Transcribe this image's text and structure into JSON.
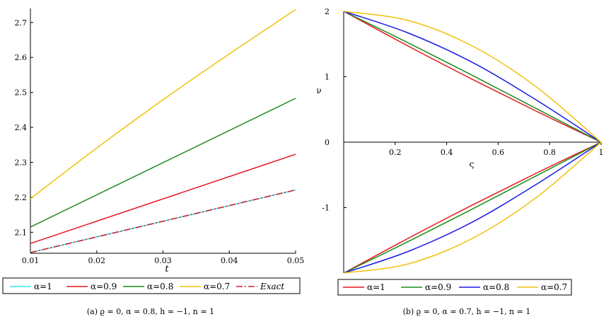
{
  "chart_data": [
    {
      "type": "line",
      "xlabel": "t",
      "ylabel": "",
      "xlim": [
        0.01,
        0.05
      ],
      "ylim": [
        2.04,
        2.74
      ],
      "x_ticks": [
        "0.01",
        "0.02",
        "0.03",
        "0.04",
        "0.05"
      ],
      "y_ticks": [
        "2.1",
        "2.2",
        "2.3",
        "2.4",
        "2.5",
        "2.6",
        "2.7"
      ],
      "legend_position": "bottom",
      "caption": "(a) ϱ = 0, α = 0.8, h = −1, n = 1",
      "series": [
        {
          "name": "α=1",
          "color": "#33e6f0",
          "style": "solid",
          "x": [
            0.01,
            0.05
          ],
          "y": [
            2.042,
            2.221
          ]
        },
        {
          "name": "α=0.9",
          "color": "#e8161a",
          "style": "solid",
          "x": [
            0.01,
            0.05
          ],
          "y": [
            2.068,
            2.323
          ]
        },
        {
          "name": "α=0.8",
          "color": "#1c8c1c",
          "style": "solid",
          "x": [
            0.01,
            0.05
          ],
          "y": [
            2.115,
            2.483
          ]
        },
        {
          "name": "α=0.7",
          "color": "#f2c10a",
          "style": "solid",
          "x": [
            0.01,
            0.02,
            0.03,
            0.04,
            0.05
          ],
          "y": [
            2.196,
            2.341,
            2.479,
            2.61,
            2.737
          ]
        },
        {
          "name": "Exact",
          "color": "#d0202a",
          "style": "dashdot",
          "x": [
            0.01,
            0.05
          ],
          "y": [
            2.042,
            2.221
          ]
        }
      ]
    },
    {
      "type": "line",
      "xlabel": "ς",
      "ylabel": "ν",
      "xlim": [
        0,
        1
      ],
      "ylim": [
        -2,
        2
      ],
      "x_ticks": [
        "0.2",
        "0.4",
        "0.6",
        "0.8",
        "1"
      ],
      "y_ticks": [
        "2",
        "1",
        "0",
        "-1"
      ],
      "legend_position": "bottom",
      "caption": "(b) ϱ = 0, α = 0.7, h = −1, n = 1",
      "series": [
        {
          "name": "α=1",
          "color": "#e8161a",
          "style": "solid",
          "x": [
            0,
            0.25,
            0.5,
            0.75,
            1
          ],
          "upper": [
            2,
            1.47,
            0.96,
            0.47,
            0
          ],
          "lower": [
            -2,
            -1.47,
            -0.96,
            -0.47,
            0
          ]
        },
        {
          "name": "α=0.9",
          "color": "#1c8c1c",
          "style": "solid",
          "x": [
            0,
            0.25,
            0.5,
            0.75,
            1
          ],
          "upper": [
            2,
            1.52,
            1.02,
            0.51,
            0
          ],
          "lower": [
            -2,
            -1.52,
            -1.02,
            -0.51,
            0
          ]
        },
        {
          "name": "α=0.8",
          "color": "#1a1ae6",
          "style": "solid",
          "x": [
            0,
            0.25,
            0.5,
            0.75,
            1
          ],
          "upper": [
            2,
            1.67,
            1.22,
            0.64,
            0
          ],
          "lower": [
            -2,
            -1.67,
            -1.22,
            -0.64,
            0
          ]
        },
        {
          "name": "α=0.7",
          "color": "#f2c10a",
          "style": "solid",
          "x": [
            0,
            0.25,
            0.5,
            0.75,
            1
          ],
          "upper": [
            2,
            1.86,
            1.47,
            0.84,
            0
          ],
          "lower": [
            -2,
            -1.86,
            -1.47,
            -0.84,
            0
          ]
        }
      ]
    }
  ]
}
